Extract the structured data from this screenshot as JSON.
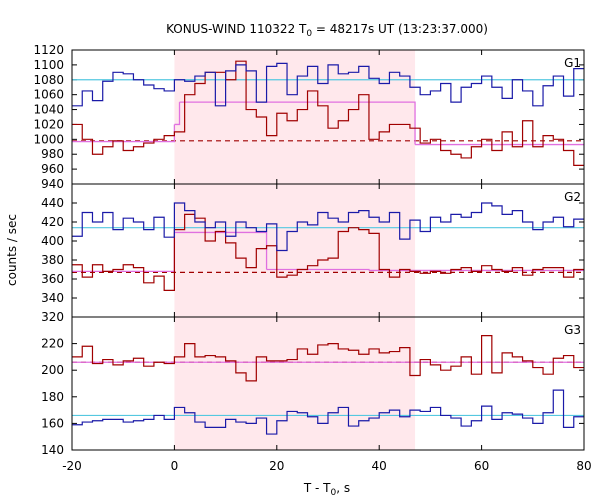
{
  "chart_data": {
    "type": "line",
    "title": "KONUS-WIND 110322 T",
    "title_sub": "0",
    "title_rest": " = 48217s UT (13:23:37.000)",
    "xlabel": "T - T",
    "xlabel_sub": "0",
    "xlabel_rest": ", s",
    "ylabel": "counts / sec",
    "xlim": [
      -20,
      80
    ],
    "x_ticks": [
      -20,
      0,
      20,
      40,
      60,
      80
    ],
    "x_tick_labels": [
      "-20",
      "0",
      "20",
      "40",
      "60",
      "80"
    ],
    "shaded_interval": [
      0,
      47
    ],
    "colors": {
      "shade": "#ffe8ec",
      "blue": "#1a1aa8",
      "red": "#a00000",
      "cyan": "#55c8e0",
      "magenta": "#e070e0"
    },
    "step_edges": [
      -20,
      -18,
      -16,
      -14,
      -12,
      -10,
      -8,
      -6,
      -4,
      -2,
      0,
      2,
      4,
      6,
      8,
      10,
      12,
      14,
      16,
      18,
      20,
      22,
      24,
      26,
      28,
      30,
      32,
      34,
      36,
      38,
      40,
      42,
      44,
      46,
      48,
      50,
      52,
      54,
      56,
      58,
      60,
      62,
      64,
      66,
      68,
      70,
      72,
      74,
      76,
      78,
      80
    ],
    "panels": [
      {
        "label": "G1",
        "ylim": [
          940,
          1120
        ],
        "yticks": [
          940,
          960,
          980,
          1000,
          1020,
          1040,
          1060,
          1080,
          1100,
          1120
        ],
        "ytick_labels": [
          "940",
          "960",
          "980",
          "1000",
          "1020",
          "1040",
          "1060",
          "1080",
          "1100",
          "1120"
        ],
        "blue_steps": [
          1045,
          1065,
          1052,
          1078,
          1090,
          1088,
          1080,
          1073,
          1068,
          1065,
          1080,
          1078,
          1085,
          1090,
          1045,
          1092,
          1100,
          1092,
          1050,
          1098,
          1102,
          1060,
          1085,
          1098,
          1075,
          1100,
          1088,
          1090,
          1098,
          1082,
          1075,
          1090,
          1085,
          1070,
          1060,
          1065,
          1075,
          1050,
          1070,
          1075,
          1085,
          1070,
          1055,
          1080,
          1065,
          1045,
          1072,
          1085,
          1058,
          1095
        ],
        "red_steps": [
          1020,
          1000,
          980,
          990,
          998,
          985,
          990,
          995,
          1000,
          1005,
          1010,
          1060,
          1075,
          1090,
          1090,
          1080,
          1105,
          1040,
          1030,
          1005,
          1035,
          1025,
          1040,
          1065,
          1045,
          1015,
          1025,
          1040,
          1060,
          1000,
          1010,
          1020,
          1020,
          1015,
          995,
          1000,
          985,
          980,
          975,
          990,
          1000,
          985,
          1010,
          990,
          1025,
          990,
          1005,
          1000,
          985,
          965
        ],
        "blue_mean": 1080,
        "red_mean": 998,
        "magenta_steps": [
          {
            "x": [
              -20,
              0
            ],
            "y": 997
          },
          {
            "x": [
              0,
              1
            ],
            "y": 1020
          },
          {
            "x": [
              1,
              47
            ],
            "y": 1050
          },
          {
            "x": [
              47,
              80
            ],
            "y": 993
          }
        ]
      },
      {
        "label": "G2",
        "ylim": [
          320,
          460
        ],
        "yticks": [
          320,
          340,
          360,
          380,
          400,
          420,
          440
        ],
        "ytick_labels": [
          "320",
          "340",
          "360",
          "380",
          "400",
          "420",
          "440"
        ],
        "blue_steps": [
          405,
          430,
          420,
          430,
          412,
          424,
          420,
          412,
          425,
          404,
          440,
          432,
          420,
          414,
          420,
          405,
          420,
          414,
          410,
          418,
          390,
          410,
          420,
          417,
          430,
          424,
          420,
          430,
          432,
          425,
          420,
          430,
          402,
          422,
          410,
          425,
          420,
          428,
          425,
          430,
          440,
          437,
          428,
          432,
          420,
          412,
          420,
          425,
          415,
          423
        ],
        "red_steps": [
          375,
          362,
          375,
          368,
          370,
          375,
          372,
          356,
          363,
          348,
          412,
          428,
          424,
          400,
          410,
          398,
          382,
          372,
          392,
          395,
          362,
          364,
          370,
          374,
          380,
          382,
          410,
          414,
          412,
          408,
          370,
          362,
          370,
          368,
          366,
          368,
          366,
          370,
          372,
          368,
          374,
          370,
          368,
          372,
          364,
          370,
          372,
          372,
          362,
          370
        ],
        "blue_mean": 414,
        "red_mean": 367,
        "magenta_steps": [
          {
            "x": [
              -20,
              0
            ],
            "y": 368
          },
          {
            "x": [
              0,
              18
            ],
            "y": 409
          },
          {
            "x": [
              18,
              38
            ],
            "y": 370
          },
          {
            "x": [
              38,
              80
            ],
            "y": 369
          }
        ]
      },
      {
        "label": "G3",
        "ylim": [
          140,
          240
        ],
        "yticks": [
          140,
          160,
          180,
          200,
          220
        ],
        "ytick_labels": [
          "140",
          "160",
          "180",
          "200",
          "220"
        ],
        "blue_steps": [
          159,
          161,
          162,
          163,
          163,
          161,
          162,
          163,
          166,
          163,
          172,
          168,
          161,
          157,
          157,
          163,
          161,
          160,
          164,
          152,
          162,
          169,
          168,
          165,
          160,
          168,
          172,
          158,
          162,
          164,
          168,
          170,
          165,
          170,
          169,
          172,
          166,
          164,
          158,
          162,
          173,
          163,
          168,
          167,
          164,
          160,
          168,
          185,
          157,
          165
        ],
        "red_steps": [
          210,
          218,
          205,
          208,
          204,
          207,
          209,
          203,
          206,
          205,
          210,
          220,
          210,
          211,
          210,
          207,
          198,
          192,
          210,
          207,
          207,
          208,
          216,
          212,
          219,
          220,
          216,
          215,
          212,
          216,
          213,
          214,
          217,
          196,
          208,
          204,
          200,
          203,
          210,
          197,
          226,
          198,
          213,
          210,
          207,
          202,
          197,
          209,
          211,
          202
        ],
        "blue_mean": 166,
        "red_mean": 206,
        "magenta_steps": [
          {
            "x": [
              -20,
              80
            ],
            "y": 206
          }
        ]
      }
    ]
  }
}
